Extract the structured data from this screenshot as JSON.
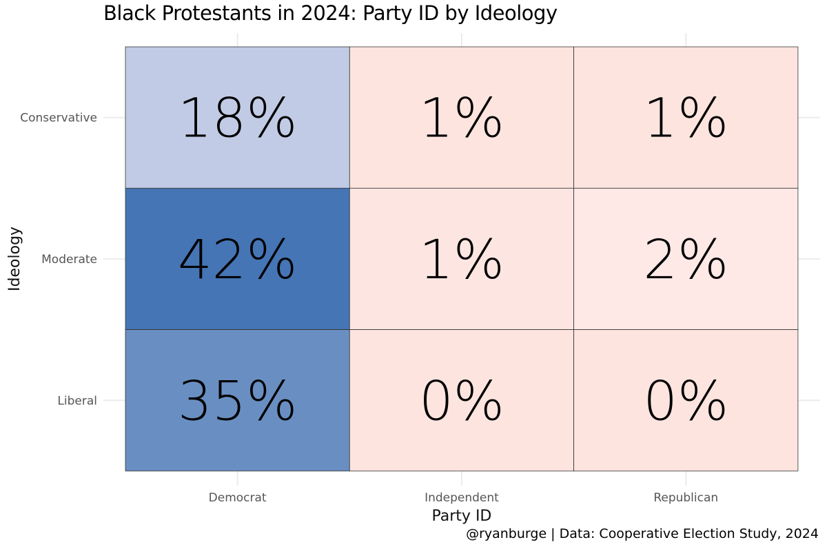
{
  "chart_data": {
    "type": "heatmap",
    "title": "Black Protestants in 2024: Party ID by Ideology",
    "xlabel": "Party ID",
    "ylabel": "Ideology",
    "x_categories": [
      "Democrat",
      "Independent",
      "Republican"
    ],
    "y_categories": [
      "Conservative",
      "Moderate",
      "Liberal"
    ],
    "values": [
      [
        18,
        1,
        1
      ],
      [
        42,
        1,
        2
      ],
      [
        35,
        0,
        0
      ]
    ],
    "value_labels": [
      [
        "18%",
        "1%",
        "1%"
      ],
      [
        "42%",
        "1%",
        "2%"
      ],
      [
        "35%",
        "0%",
        "0%"
      ]
    ],
    "colors": {
      "democrat_high": "#4575b4",
      "democrat_low": "#c2cbe5",
      "other_low": "#fde4df",
      "other_mid": "#fee9e6",
      "grid": "#ebebeb",
      "border": "#333333"
    },
    "caption": "@ryanburge | Data: Cooperative Election Study, 2024"
  }
}
